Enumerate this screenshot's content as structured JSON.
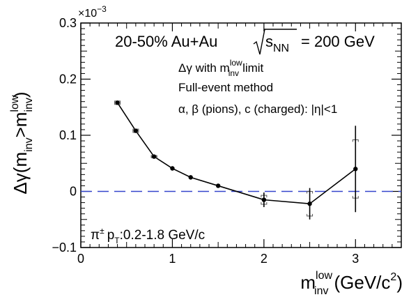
{
  "chart_data": {
    "type": "scatter",
    "xlim": [
      0,
      3.5
    ],
    "ylim": [
      -0.1,
      0.3
    ],
    "y_scale_label": "×10",
    "y_scale_exponent": "−3",
    "x_ticks": [
      "0",
      "1",
      "2",
      "3"
    ],
    "y_ticks": [
      "−0.1",
      "0",
      "0.1",
      "0.2",
      "0.3"
    ],
    "x_tick_values": [
      0,
      1,
      2,
      3
    ],
    "y_tick_values": [
      -0.1,
      0,
      0.1,
      0.2,
      0.3
    ],
    "grid": false,
    "reference_line": {
      "y": 0,
      "style": "dashed",
      "color": "#3344cc"
    },
    "ylabel": {
      "prefix": "Δγ(m",
      "sub1": "inv",
      "mid": ">m",
      "sup2": "low",
      "sub2": "inv",
      "suffix": ")"
    },
    "xlabel": {
      "main": "m",
      "sup": "low",
      "sub": "inv",
      "unit": "(GeV/c",
      "unit_sup": "2",
      "unit_end": ")"
    },
    "series": [
      {
        "marker": "circle",
        "color": "#000000",
        "connected": true,
        "points": [
          {
            "x": 0.4,
            "y": 0.158,
            "stat_err": 0.0,
            "sys_err": 0.003
          },
          {
            "x": 0.6,
            "y": 0.108,
            "stat_err": 0.0,
            "sys_err": 0.003
          },
          {
            "x": 0.8,
            "y": 0.062,
            "stat_err": 0.0,
            "sys_err": 0.002
          },
          {
            "x": 1.0,
            "y": 0.041,
            "stat_err": 0.0,
            "sys_err": 0.0
          },
          {
            "x": 1.2,
            "y": 0.025,
            "stat_err": 0.0,
            "sys_err": 0.0
          },
          {
            "x": 1.5,
            "y": 0.01,
            "stat_err": 0.0,
            "sys_err": 0.0
          },
          {
            "x": 2.0,
            "y": -0.015,
            "stat_err": 0.013,
            "sys_err": 0.008
          },
          {
            "x": 2.5,
            "y": -0.022,
            "stat_err": 0.028,
            "sys_err": 0.022
          },
          {
            "x": 3.0,
            "y": 0.04,
            "stat_err": 0.077,
            "sys_err": 0.052
          }
        ]
      }
    ],
    "annotations": {
      "title_main": "20-50% Au+Au",
      "title_sqrt": "s",
      "title_sqrt_sub": "NN",
      "title_energy": "= 200 GeV",
      "line1_pre": "Δγ with m",
      "line1_sup": "low",
      "line1_sub": "inv",
      "line1_post": "limit",
      "line2": "Full-event method",
      "line3": "α, β (pions), c (charged): |η|<1",
      "bottom_left": "π",
      "bottom_left_sup": "±",
      "bottom_left_p": "p",
      "bottom_left_sub": "T",
      "bottom_left_post": ":0.2-1.8 GeV/c"
    }
  }
}
